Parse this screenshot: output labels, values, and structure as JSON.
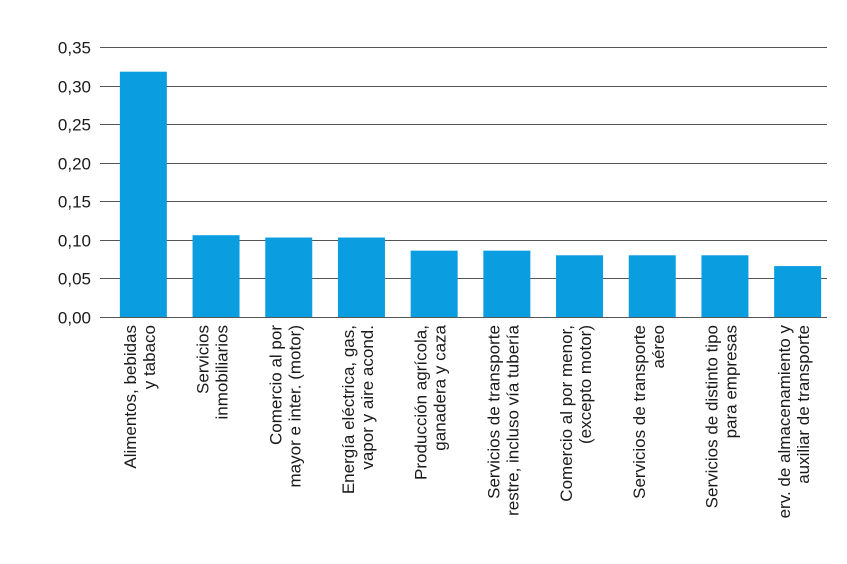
{
  "chart_data": {
    "type": "bar",
    "categories": [
      [
        "Alimentos, bebidas",
        "y tabaco"
      ],
      [
        "Servicios",
        "inmobiliarios"
      ],
      [
        "Comercio al por",
        "mayor e inter. (motor)"
      ],
      [
        "Energía eléctrica, gas,",
        "vapor y aire acond."
      ],
      [
        "Producción agrícola,",
        "ganadera y caza"
      ],
      [
        "Servicios de transporte",
        "restre, incluso vía tubería"
      ],
      [
        "Comercio al por menor,",
        "(excepto motor)"
      ],
      [
        "Servicios de transporte",
        "aéreo"
      ],
      [
        "Servicios de distinto tipo",
        "para empresas"
      ],
      [
        "erv. de almacenamiento y",
        "auxiliar de transporte"
      ]
    ],
    "values": [
      0.318,
      0.106,
      0.103,
      0.103,
      0.086,
      0.086,
      0.08,
      0.08,
      0.08,
      0.066
    ],
    "ylim": [
      0,
      0.35
    ],
    "yticks": [
      "0,00",
      "0,05",
      "0,10",
      "0,15",
      "0,20",
      "0,25",
      "0,30",
      "0,35"
    ],
    "ytick_values": [
      0,
      0.05,
      0.1,
      0.15,
      0.2,
      0.25,
      0.3,
      0.35
    ],
    "grid": true,
    "bar_color": "#0a9de0"
  }
}
